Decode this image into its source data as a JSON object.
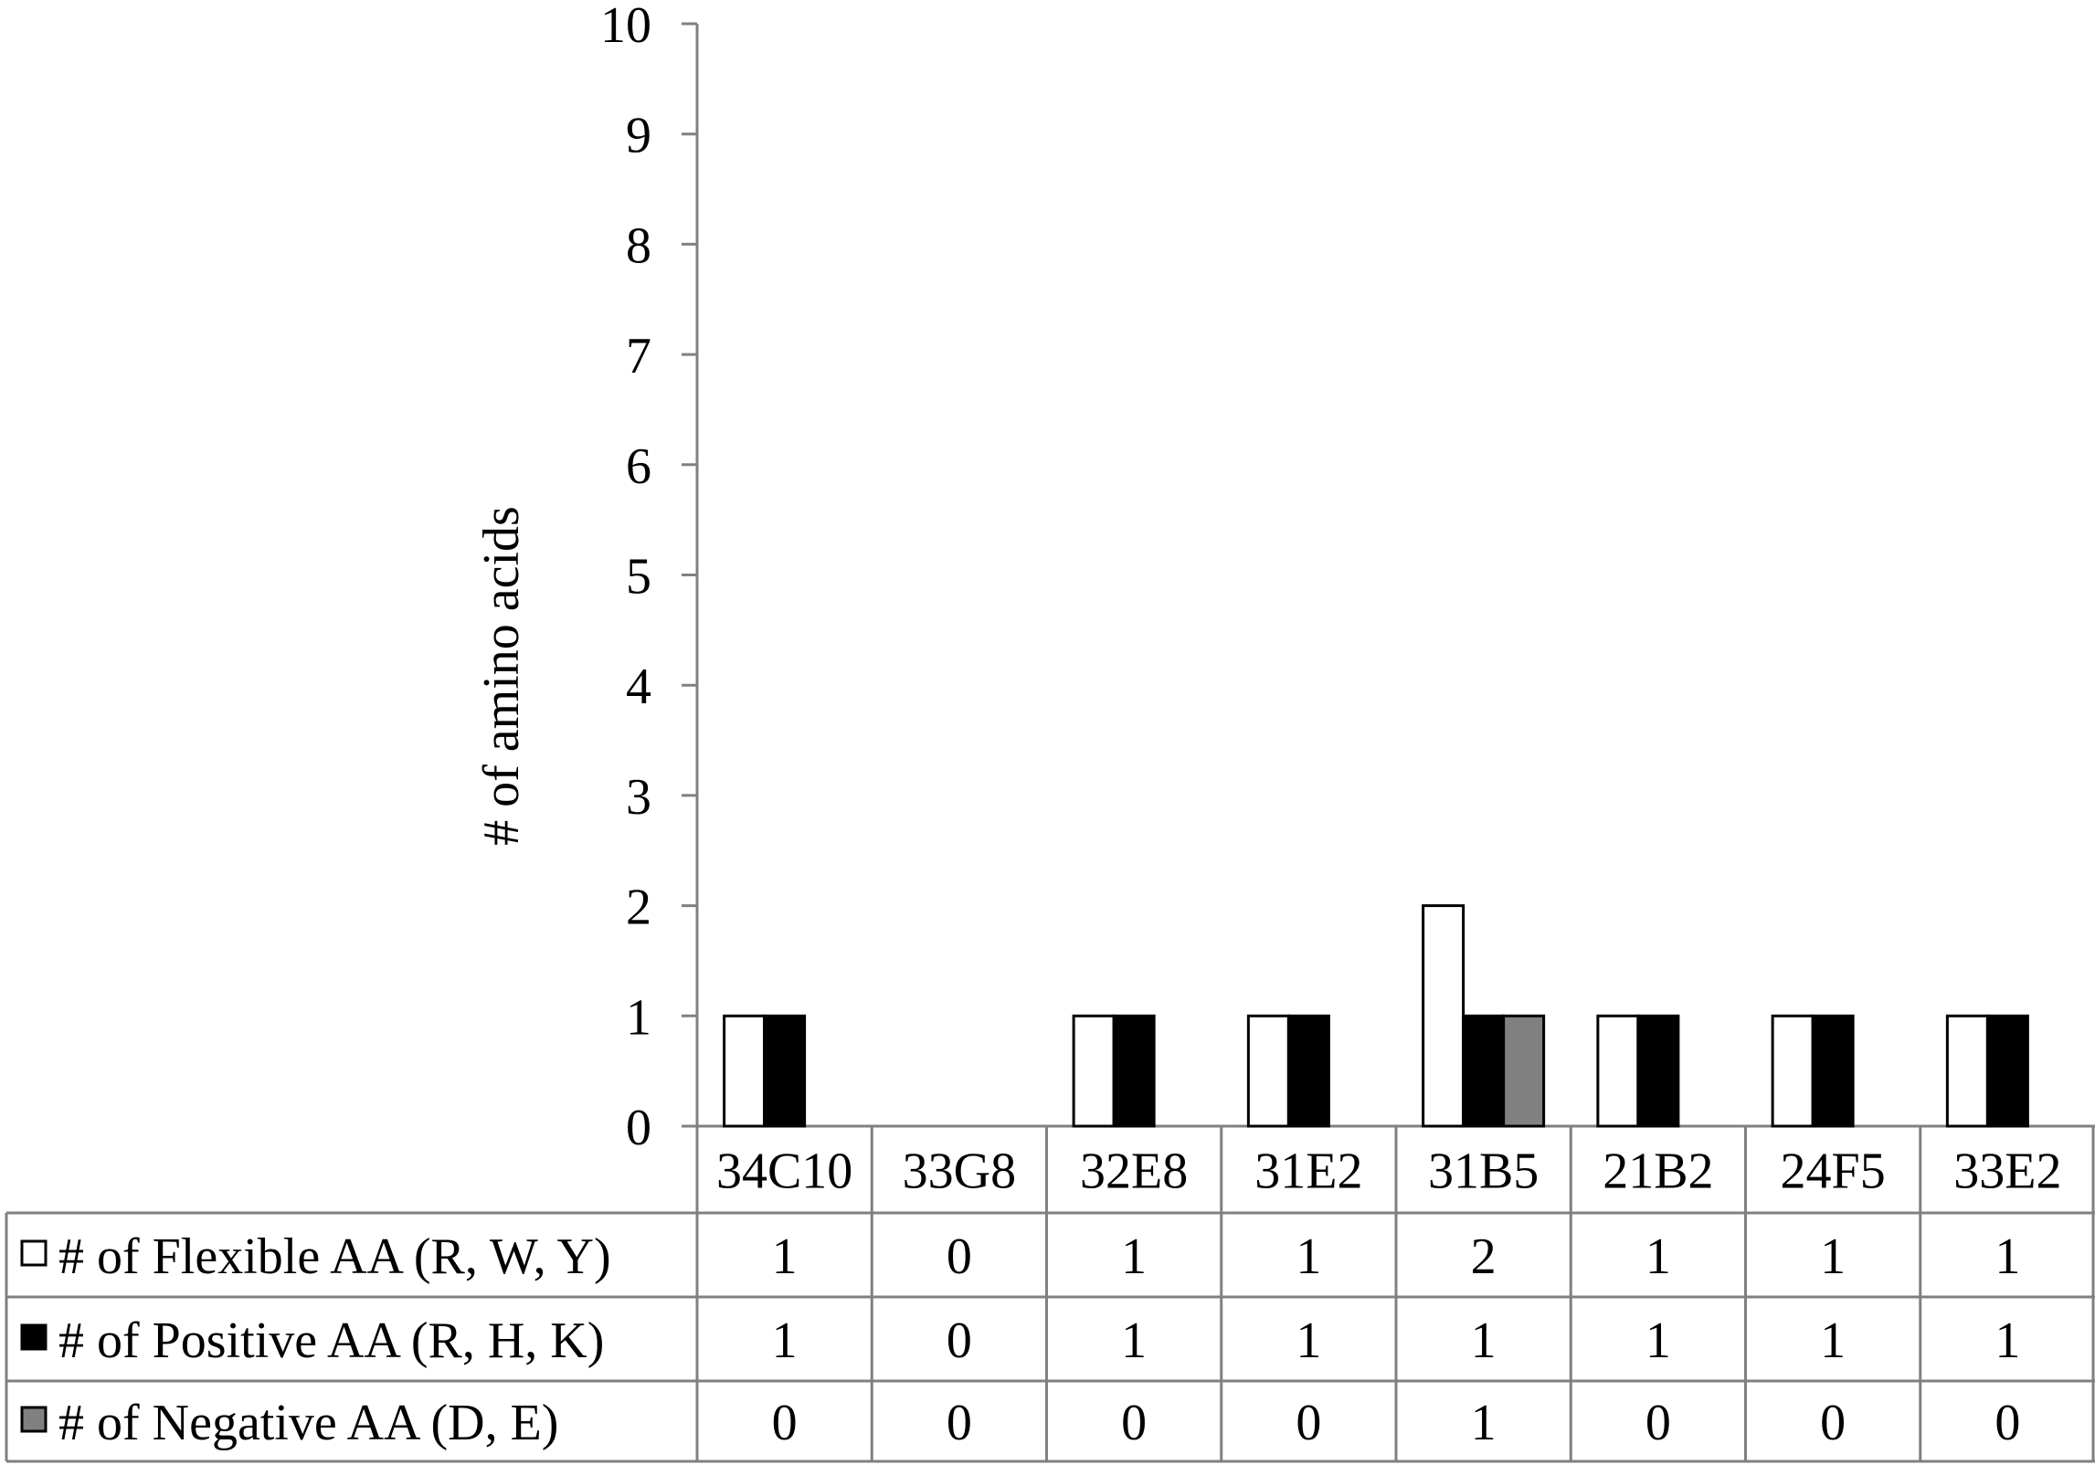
{
  "chart_data": {
    "type": "bar",
    "title": "",
    "xlabel": "",
    "ylabel": "# of amino acids",
    "ylim": [
      0,
      10
    ],
    "yticks": [
      0,
      1,
      2,
      3,
      4,
      5,
      6,
      7,
      8,
      9,
      10
    ],
    "grid": false,
    "legend_placement": "data-table-left",
    "categories": [
      "34C10",
      "33G8",
      "32E8",
      "31E2",
      "31B5",
      "21B2",
      "24F5",
      "33E2"
    ],
    "series": [
      {
        "name": "# of Flexible AA (R, W, Y)",
        "color": "#ffffff",
        "values": [
          1,
          0,
          1,
          1,
          2,
          1,
          1,
          1
        ]
      },
      {
        "name": "# of Positive AA (R, H, K)",
        "color": "#000000",
        "values": [
          1,
          0,
          1,
          1,
          1,
          1,
          1,
          1
        ]
      },
      {
        "name": "# of Negative AA (D, E)",
        "color": "#808080",
        "values": [
          0,
          0,
          0,
          0,
          1,
          0,
          0,
          0
        ]
      }
    ],
    "data_table": true
  }
}
